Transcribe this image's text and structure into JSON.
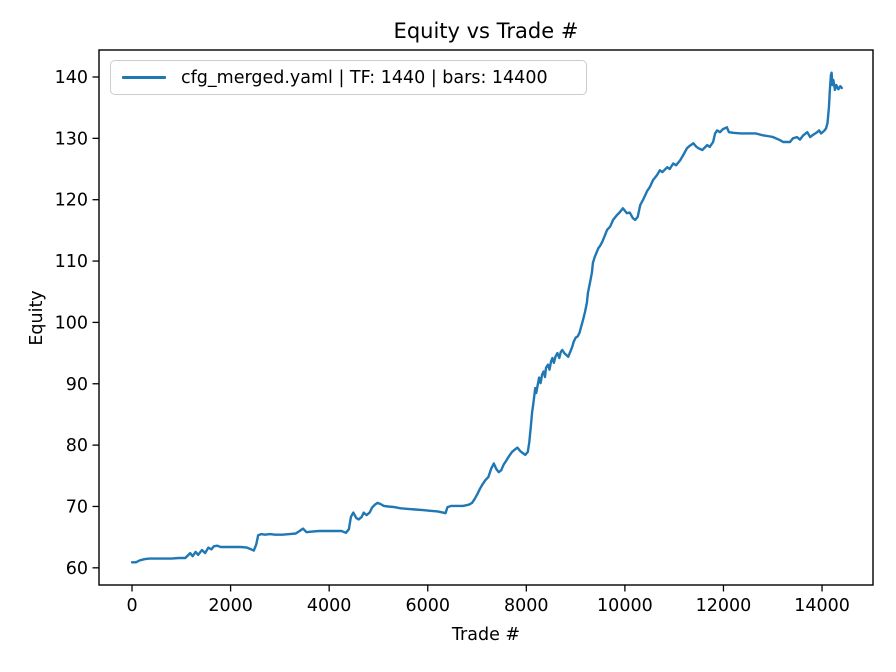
{
  "figure": {
    "background": "#ffffff",
    "text_color": "#000000",
    "spine_color": "#000000"
  },
  "chart_data": {
    "type": "line",
    "title": "Equity vs Trade #",
    "xlabel": "Trade #",
    "ylabel": "Equity",
    "xlim": [
      -670,
      15034
    ],
    "ylim": [
      57.2,
      144.4
    ],
    "x_ticks": [
      0,
      2000,
      4000,
      6000,
      8000,
      10000,
      12000,
      14000
    ],
    "x_tick_labels": [
      "0",
      "2000",
      "4000",
      "6000",
      "8000",
      "10000",
      "12000",
      "14000"
    ],
    "y_ticks": [
      60,
      70,
      80,
      90,
      100,
      110,
      120,
      130,
      140
    ],
    "y_tick_labels": [
      "60",
      "70",
      "80",
      "90",
      "100",
      "110",
      "120",
      "130",
      "140"
    ],
    "grid": false,
    "legend": {
      "position": "upper left",
      "entries": [
        {
          "label": "cfg_merged.yaml | TF: 1440 | bars: 14400",
          "color": "#1f77b4"
        }
      ]
    },
    "series": [
      {
        "name": "cfg_merged.yaml | TF: 1440 | bars: 14400",
        "color": "#1f77b4",
        "line_width": 2.4,
        "points": [
          [
            0,
            60.9
          ],
          [
            80,
            60.9
          ],
          [
            150,
            61.2
          ],
          [
            250,
            61.4
          ],
          [
            350,
            61.5
          ],
          [
            500,
            61.5
          ],
          [
            650,
            61.5
          ],
          [
            800,
            61.5
          ],
          [
            950,
            61.6
          ],
          [
            1080,
            61.6
          ],
          [
            1130,
            62.0
          ],
          [
            1180,
            62.4
          ],
          [
            1230,
            61.9
          ],
          [
            1290,
            62.6
          ],
          [
            1340,
            62.1
          ],
          [
            1420,
            62.9
          ],
          [
            1480,
            62.4
          ],
          [
            1550,
            63.3
          ],
          [
            1610,
            63.0
          ],
          [
            1660,
            63.5
          ],
          [
            1730,
            63.6
          ],
          [
            1800,
            63.4
          ],
          [
            1900,
            63.4
          ],
          [
            2050,
            63.4
          ],
          [
            2200,
            63.4
          ],
          [
            2330,
            63.3
          ],
          [
            2420,
            63.0
          ],
          [
            2470,
            62.8
          ],
          [
            2520,
            63.8
          ],
          [
            2560,
            65.3
          ],
          [
            2620,
            65.5
          ],
          [
            2700,
            65.4
          ],
          [
            2800,
            65.5
          ],
          [
            2900,
            65.4
          ],
          [
            3050,
            65.4
          ],
          [
            3200,
            65.5
          ],
          [
            3320,
            65.6
          ],
          [
            3400,
            66.0
          ],
          [
            3470,
            66.4
          ],
          [
            3540,
            65.8
          ],
          [
            3650,
            65.9
          ],
          [
            3800,
            66.0
          ],
          [
            3950,
            66.0
          ],
          [
            4100,
            66.0
          ],
          [
            4250,
            66.0
          ],
          [
            4340,
            65.7
          ],
          [
            4400,
            66.3
          ],
          [
            4440,
            68.3
          ],
          [
            4490,
            69.0
          ],
          [
            4550,
            68.1
          ],
          [
            4600,
            67.9
          ],
          [
            4660,
            68.3
          ],
          [
            4700,
            69.0
          ],
          [
            4760,
            68.6
          ],
          [
            4820,
            69.0
          ],
          [
            4870,
            69.8
          ],
          [
            4930,
            70.3
          ],
          [
            4980,
            70.6
          ],
          [
            5040,
            70.4
          ],
          [
            5110,
            70.1
          ],
          [
            5200,
            70.0
          ],
          [
            5320,
            69.9
          ],
          [
            5450,
            69.7
          ],
          [
            5600,
            69.6
          ],
          [
            5750,
            69.5
          ],
          [
            5900,
            69.4
          ],
          [
            6050,
            69.3
          ],
          [
            6200,
            69.2
          ],
          [
            6310,
            69.0
          ],
          [
            6360,
            68.9
          ],
          [
            6400,
            69.9
          ],
          [
            6480,
            70.1
          ],
          [
            6600,
            70.1
          ],
          [
            6720,
            70.1
          ],
          [
            6840,
            70.3
          ],
          [
            6900,
            70.6
          ],
          [
            6950,
            71.2
          ],
          [
            7000,
            71.9
          ],
          [
            7060,
            72.9
          ],
          [
            7110,
            73.6
          ],
          [
            7170,
            74.3
          ],
          [
            7230,
            74.8
          ],
          [
            7290,
            76.2
          ],
          [
            7340,
            77.0
          ],
          [
            7390,
            76.1
          ],
          [
            7440,
            75.6
          ],
          [
            7490,
            75.9
          ],
          [
            7540,
            76.8
          ],
          [
            7580,
            77.3
          ],
          [
            7640,
            78.1
          ],
          [
            7710,
            78.9
          ],
          [
            7770,
            79.3
          ],
          [
            7820,
            79.6
          ],
          [
            7880,
            79.0
          ],
          [
            7930,
            78.7
          ],
          [
            7980,
            78.4
          ],
          [
            8030,
            78.9
          ],
          [
            8060,
            80.5
          ],
          [
            8090,
            83.0
          ],
          [
            8120,
            85.5
          ],
          [
            8140,
            86.6
          ],
          [
            8160,
            87.9
          ],
          [
            8180,
            89.3
          ],
          [
            8200,
            88.5
          ],
          [
            8230,
            89.8
          ],
          [
            8260,
            91.0
          ],
          [
            8290,
            90.1
          ],
          [
            8320,
            91.5
          ],
          [
            8350,
            92.0
          ],
          [
            8380,
            91.1
          ],
          [
            8400,
            92.6
          ],
          [
            8440,
            93.1
          ],
          [
            8470,
            92.3
          ],
          [
            8500,
            93.6
          ],
          [
            8530,
            94.2
          ],
          [
            8560,
            93.4
          ],
          [
            8590,
            94.4
          ],
          [
            8630,
            95.0
          ],
          [
            8670,
            94.2
          ],
          [
            8700,
            95.2
          ],
          [
            8730,
            95.5
          ],
          [
            8770,
            95.0
          ],
          [
            8810,
            94.7
          ],
          [
            8850,
            94.4
          ],
          [
            8890,
            95.2
          ],
          [
            8930,
            96.0
          ],
          [
            8960,
            96.8
          ],
          [
            9000,
            97.5
          ],
          [
            9040,
            97.7
          ],
          [
            9080,
            98.3
          ],
          [
            9120,
            99.5
          ],
          [
            9150,
            100.4
          ],
          [
            9190,
            101.7
          ],
          [
            9230,
            103.2
          ],
          [
            9250,
            104.8
          ],
          [
            9290,
            106.4
          ],
          [
            9330,
            108.1
          ],
          [
            9350,
            109.7
          ],
          [
            9390,
            110.7
          ],
          [
            9430,
            111.5
          ],
          [
            9460,
            112.1
          ],
          [
            9490,
            112.4
          ],
          [
            9540,
            113.1
          ],
          [
            9600,
            114.3
          ],
          [
            9640,
            115.1
          ],
          [
            9700,
            115.6
          ],
          [
            9760,
            116.7
          ],
          [
            9840,
            117.5
          ],
          [
            9900,
            118.0
          ],
          [
            9960,
            118.6
          ],
          [
            10040,
            117.8
          ],
          [
            10100,
            117.9
          ],
          [
            10160,
            117.0
          ],
          [
            10210,
            116.7
          ],
          [
            10260,
            117.2
          ],
          [
            10310,
            119.1
          ],
          [
            10370,
            120.0
          ],
          [
            10450,
            121.4
          ],
          [
            10510,
            122.1
          ],
          [
            10570,
            123.2
          ],
          [
            10650,
            124.0
          ],
          [
            10710,
            124.8
          ],
          [
            10760,
            124.5
          ],
          [
            10860,
            125.3
          ],
          [
            10910,
            125.0
          ],
          [
            10980,
            125.9
          ],
          [
            11040,
            125.6
          ],
          [
            11120,
            126.4
          ],
          [
            11180,
            127.2
          ],
          [
            11260,
            128.4
          ],
          [
            11320,
            128.8
          ],
          [
            11390,
            129.2
          ],
          [
            11440,
            128.7
          ],
          [
            11490,
            128.4
          ],
          [
            11570,
            128.1
          ],
          [
            11620,
            128.5
          ],
          [
            11670,
            128.9
          ],
          [
            11720,
            128.6
          ],
          [
            11790,
            129.4
          ],
          [
            11830,
            130.8
          ],
          [
            11870,
            131.3
          ],
          [
            11930,
            131.0
          ],
          [
            11990,
            131.5
          ],
          [
            12070,
            131.8
          ],
          [
            12110,
            131.0
          ],
          [
            12200,
            130.9
          ],
          [
            12350,
            130.8
          ],
          [
            12500,
            130.8
          ],
          [
            12650,
            130.8
          ],
          [
            12800,
            130.5
          ],
          [
            12950,
            130.3
          ],
          [
            13010,
            130.2
          ],
          [
            13150,
            129.7
          ],
          [
            13210,
            129.4
          ],
          [
            13350,
            129.4
          ],
          [
            13410,
            130.0
          ],
          [
            13490,
            130.2
          ],
          [
            13550,
            129.8
          ],
          [
            13620,
            130.5
          ],
          [
            13700,
            131.0
          ],
          [
            13760,
            130.2
          ],
          [
            13820,
            130.6
          ],
          [
            13900,
            131.0
          ],
          [
            13940,
            131.3
          ],
          [
            13980,
            130.8
          ],
          [
            14040,
            131.2
          ],
          [
            14080,
            131.6
          ],
          [
            14110,
            132.5
          ],
          [
            14140,
            135.0
          ],
          [
            14160,
            138.0
          ],
          [
            14180,
            140.3
          ],
          [
            14195,
            140.7
          ],
          [
            14210,
            138.7
          ],
          [
            14230,
            139.5
          ],
          [
            14260,
            137.9
          ],
          [
            14290,
            138.7
          ],
          [
            14330,
            138.0
          ],
          [
            14370,
            138.5
          ],
          [
            14400,
            138.2
          ]
        ]
      }
    ]
  }
}
